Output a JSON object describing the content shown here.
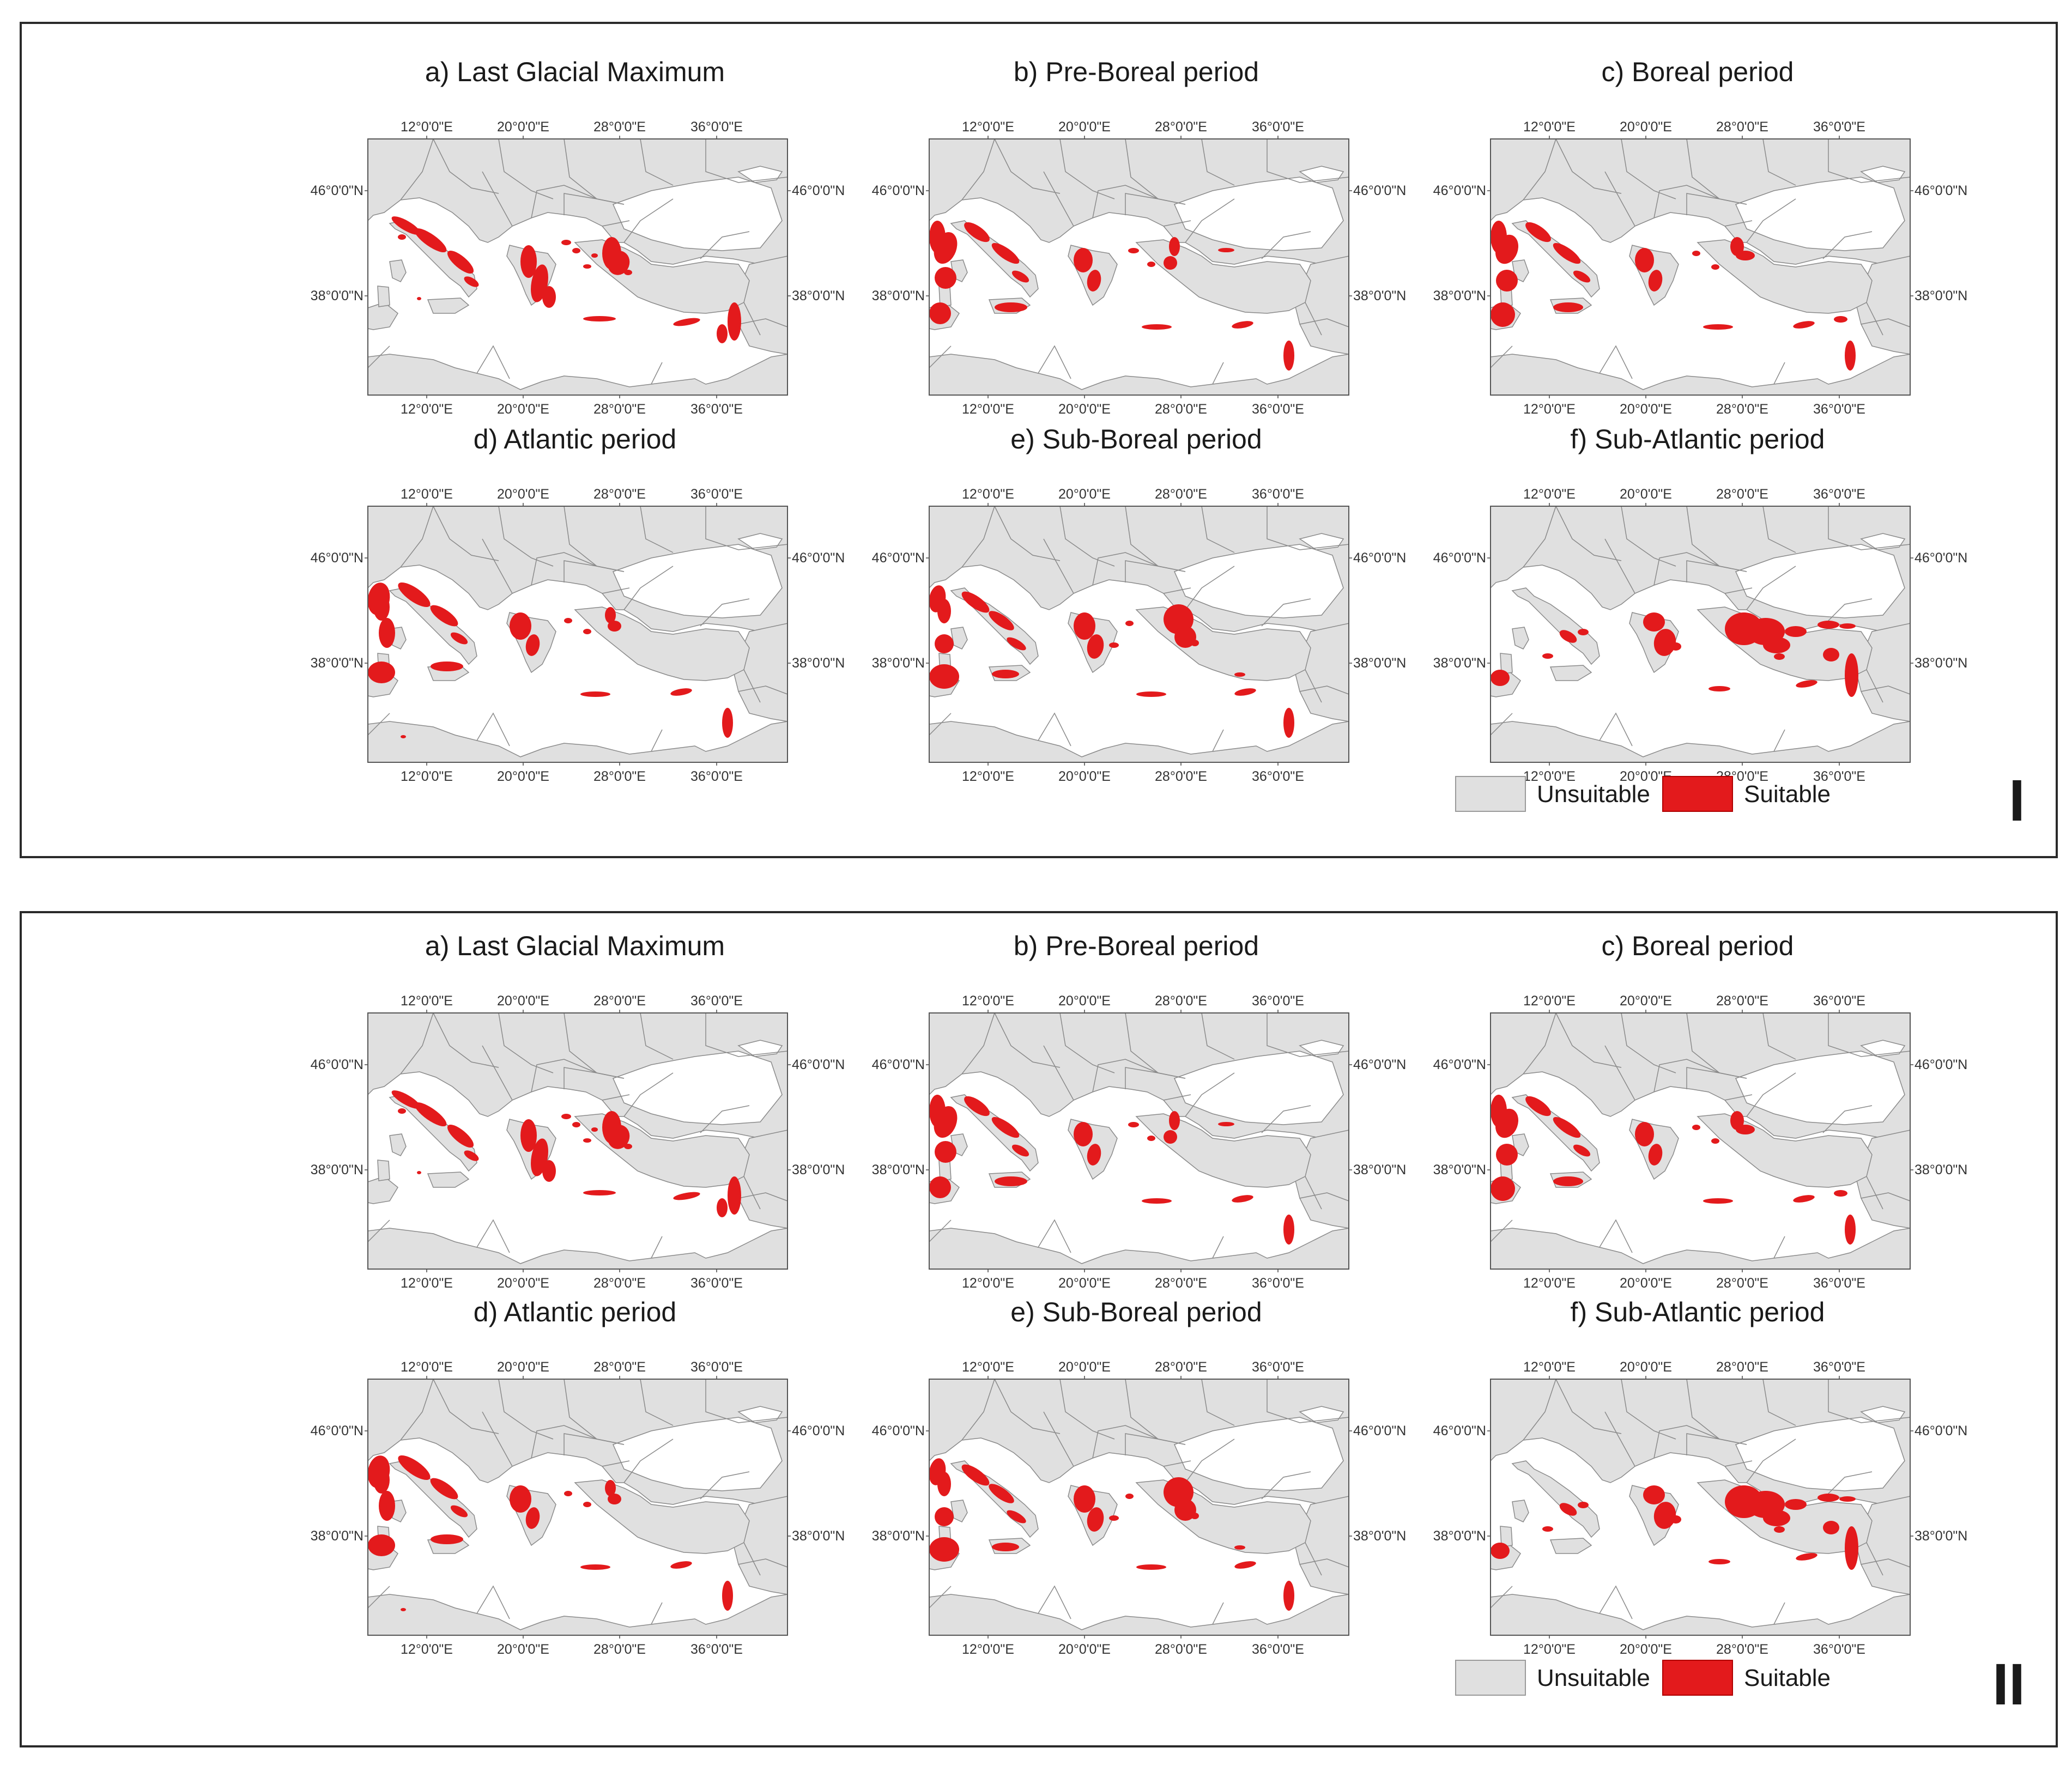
{
  "colors": {
    "unsuitable": "#e0e0e0",
    "suitable": "#e31a1c",
    "sea": "#ffffff",
    "border": "#8a8a8a",
    "frame": "#2a2a2a"
  },
  "axis_labels": {
    "lon": [
      "12°0'0\"E",
      "20°0'0\"E",
      "28°0'0\"E",
      "36°0'0\"E"
    ],
    "lat": [
      "46°0'0\"N",
      "38°0'0\"N"
    ]
  },
  "legend": {
    "unsuitable_label": "Unsuitable",
    "suitable_label": "Suitable"
  },
  "panels": [
    {
      "id": "I",
      "maps": [
        {
          "title": "a) Last Glacial Maximum",
          "pattern": "lgm"
        },
        {
          "title": "b) Pre-Boreal period",
          "pattern": "preboreal"
        },
        {
          "title": "c) Boreal period",
          "pattern": "boreal"
        },
        {
          "title": "d) Atlantic period",
          "pattern": "atlantic"
        },
        {
          "title": "e) Sub-Boreal period",
          "pattern": "subboreal"
        },
        {
          "title": "f) Sub-Atlantic period",
          "pattern": "subatlantic"
        }
      ]
    },
    {
      "id": "II",
      "maps": [
        {
          "title": "a) Last Glacial Maximum",
          "pattern": "lgm"
        },
        {
          "title": "b) Pre-Boreal period",
          "pattern": "preboreal"
        },
        {
          "title": "c) Boreal period",
          "pattern": "boreal"
        },
        {
          "title": "d) Atlantic period",
          "pattern": "atlantic"
        },
        {
          "title": "e) Sub-Boreal period",
          "pattern": "subboreal"
        },
        {
          "title": "f) Sub-Atlantic period",
          "pattern": "subatlantic"
        }
      ]
    }
  ]
}
